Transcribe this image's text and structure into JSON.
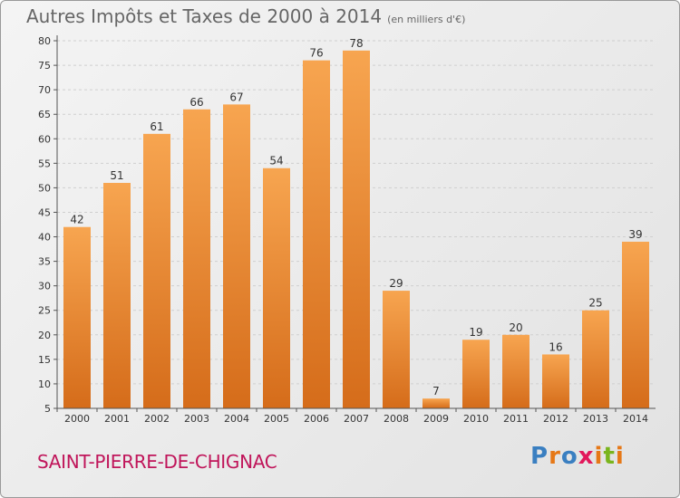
{
  "header": {
    "title": "Autres Impôts et Taxes de 2000 à 2014",
    "subtitle": "(en milliers d'€)"
  },
  "footer": {
    "location": "SAINT-PIERRE-DE-CHIGNAC"
  },
  "logo": {
    "text": "Proxiti",
    "letters": [
      "P",
      "r",
      "o",
      "x",
      "i",
      "t",
      "i"
    ],
    "colors": [
      "#3a7fc1",
      "#e67817",
      "#3a7fc1",
      "#e2185b",
      "#e67817",
      "#7ab51d",
      "#e67817"
    ]
  },
  "colors": {
    "bar_light": "#f7a550",
    "bar_dark": "#d56c1a",
    "title": "#666666",
    "location": "#c0155a"
  },
  "chart_data": {
    "type": "bar",
    "categories": [
      "2000",
      "2001",
      "2002",
      "2003",
      "2004",
      "2005",
      "2006",
      "2007",
      "2008",
      "2009",
      "2010",
      "2011",
      "2012",
      "2013",
      "2014"
    ],
    "values": [
      42,
      51,
      61,
      66,
      67,
      54,
      76,
      78,
      29,
      7,
      19,
      20,
      16,
      25,
      39
    ],
    "ylim": [
      5,
      80
    ],
    "yticks": [
      5,
      10,
      15,
      20,
      25,
      30,
      35,
      40,
      45,
      50,
      55,
      60,
      65,
      70,
      75,
      80
    ],
    "grid": true,
    "title": "Autres Impôts et Taxes de 2000 à 2014",
    "xlabel": "",
    "ylabel": ""
  }
}
